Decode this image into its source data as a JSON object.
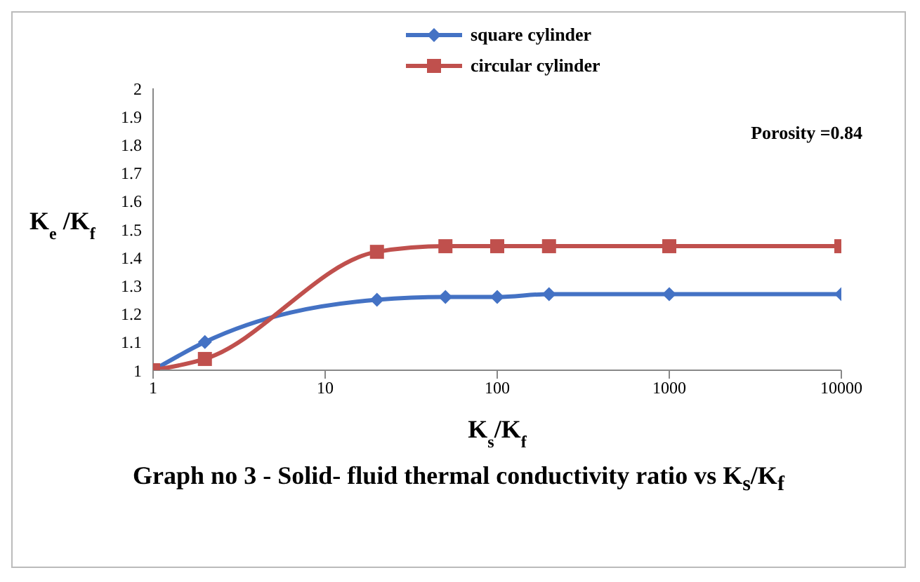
{
  "chart_data": {
    "type": "line",
    "title": "Graph no 3 - Solid- fluid thermal conductivity ratio vs K$_{s}$/K$_{f}$",
    "xlabel": "K$_{s}$/K$_{f}$",
    "ylabel": "K$_{e}$ /K$_{f}$",
    "annotations": [
      "Porosity =0.84"
    ],
    "x": [
      1,
      2,
      20,
      50,
      100,
      200,
      1000,
      10000
    ],
    "series": [
      {
        "name": "square cylinder",
        "color": "#4472c4",
        "marker": "diamond",
        "values": [
          1.0,
          1.1,
          1.25,
          1.26,
          1.26,
          1.27,
          1.27,
          1.27
        ]
      },
      {
        "name": "circular cylinder",
        "color": "#c0504d",
        "marker": "square",
        "values": [
          1.0,
          1.04,
          1.42,
          1.44,
          1.44,
          1.44,
          1.44,
          1.44
        ]
      }
    ],
    "log": "x",
    "xlim": [
      1,
      10000
    ],
    "xticks": [
      1,
      10,
      100,
      1000,
      10000
    ],
    "ylim": [
      1,
      2
    ],
    "yticks": [
      1,
      1.1,
      1.2,
      1.3,
      1.4,
      1.5,
      1.6,
      1.7,
      1.8,
      1.9,
      2
    ],
    "grid": false,
    "legend": "top",
    "line_style": "solid"
  }
}
